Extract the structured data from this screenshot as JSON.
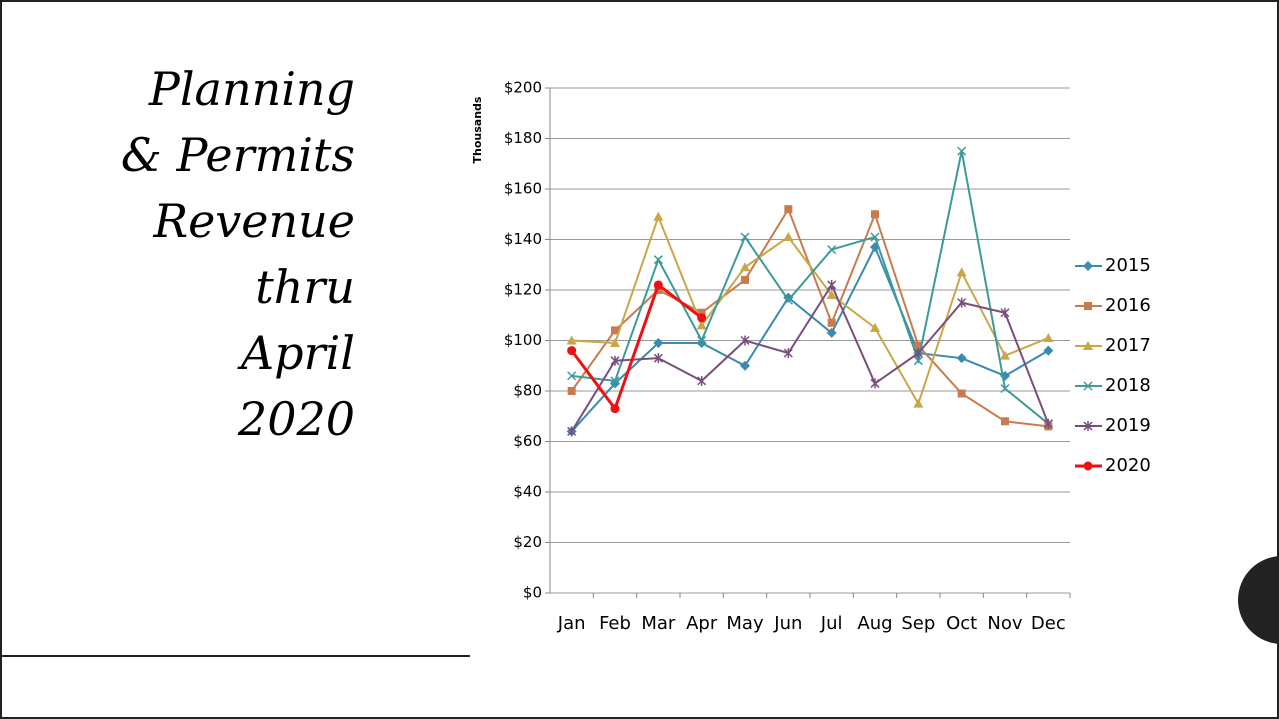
{
  "slide_title": [
    "Planning",
    "& Permits",
    "Revenue",
    "thru",
    "April",
    "2020"
  ],
  "chart_data": {
    "type": "line",
    "y_axis_label": "Thousands",
    "categories": [
      "Jan",
      "Feb",
      "Mar",
      "Apr",
      "May",
      "Jun",
      "Jul",
      "Aug",
      "Sep",
      "Oct",
      "Nov",
      "Dec"
    ],
    "ylim": [
      0,
      200
    ],
    "yticks": [
      {
        "value": 0,
        "label": "$0"
      },
      {
        "value": 20,
        "label": "$20"
      },
      {
        "value": 40,
        "label": "$40"
      },
      {
        "value": 60,
        "label": "$60"
      },
      {
        "value": 80,
        "label": "$80"
      },
      {
        "value": 100,
        "label": "$100"
      },
      {
        "value": 120,
        "label": "$120"
      },
      {
        "value": 140,
        "label": "$140"
      },
      {
        "value": 160,
        "label": "$160"
      },
      {
        "value": 180,
        "label": "$180"
      },
      {
        "value": 200,
        "label": "$200"
      }
    ],
    "grid": true,
    "legend": "right",
    "series": [
      {
        "name": "2015",
        "color": "#3a8bb0",
        "marker": "diamond",
        "values": [
          64,
          83,
          99,
          99,
          90,
          117,
          103,
          137,
          95,
          93,
          86,
          96
        ]
      },
      {
        "name": "2016",
        "color": "#c87b4e",
        "marker": "square",
        "values": [
          80,
          104,
          120,
          111,
          124,
          152,
          107,
          150,
          98,
          79,
          68,
          66
        ]
      },
      {
        "name": "2017",
        "color": "#c9a748",
        "marker": "triangle",
        "values": [
          100,
          99,
          149,
          106,
          129,
          141,
          118,
          105,
          75,
          127,
          94,
          101
        ]
      },
      {
        "name": "2018",
        "color": "#3c9a98",
        "marker": "x",
        "values": [
          86,
          84,
          132,
          100,
          141,
          116,
          136,
          141,
          92,
          175,
          81,
          67
        ]
      },
      {
        "name": "2019",
        "color": "#7a4e7c",
        "marker": "star",
        "values": [
          64,
          92,
          93,
          84,
          100,
          95,
          122,
          83,
          95,
          115,
          111,
          67
        ]
      },
      {
        "name": "2020",
        "color": "#ee1111",
        "marker": "circle",
        "values": [
          96,
          73,
          122,
          109,
          null,
          null,
          null,
          null,
          null,
          null,
          null,
          null
        ]
      }
    ]
  }
}
